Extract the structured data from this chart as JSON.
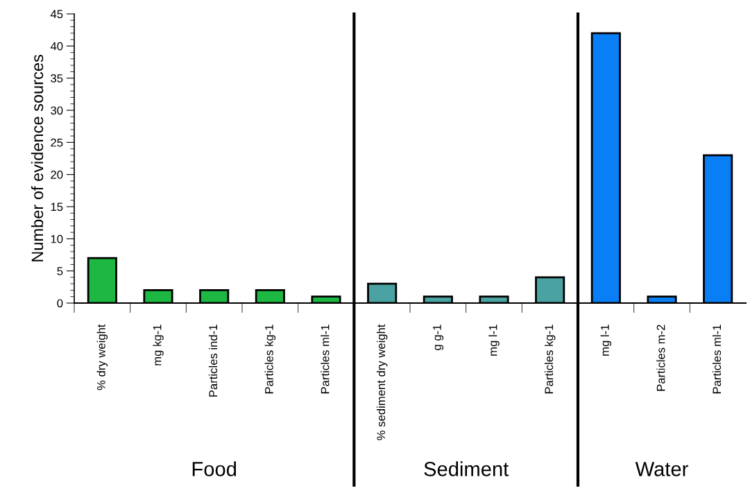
{
  "chart_data": {
    "type": "bar",
    "ylabel": "Number of evidence sources",
    "categories": [
      "% dry weight",
      "mg kg-1",
      "Particles ind-1",
      "Particles kg-1",
      "Particles ml-1",
      "% sediment dry weight",
      "g g-1",
      "mg l-1",
      "Particles kg-1",
      "mg l-1",
      "Particles m-2",
      "Particles ml-1"
    ],
    "values": [
      7,
      2,
      2,
      2,
      1,
      3,
      1,
      1,
      4,
      42,
      1,
      23
    ],
    "colors": [
      "#1cb843",
      "#1cb843",
      "#1cb843",
      "#1cb843",
      "#1cb843",
      "#4aa3a2",
      "#4aa3a2",
      "#4aa3a2",
      "#4aa3a2",
      "#0a7ff5",
      "#0a7ff5",
      "#0a7ff5"
    ],
    "ylim": [
      0,
      45
    ],
    "yticks": [
      0,
      5,
      10,
      15,
      20,
      25,
      30,
      35,
      40,
      45
    ],
    "grid": false,
    "legend": false,
    "annotations": [
      "Food",
      "Sediment",
      "Water"
    ]
  }
}
